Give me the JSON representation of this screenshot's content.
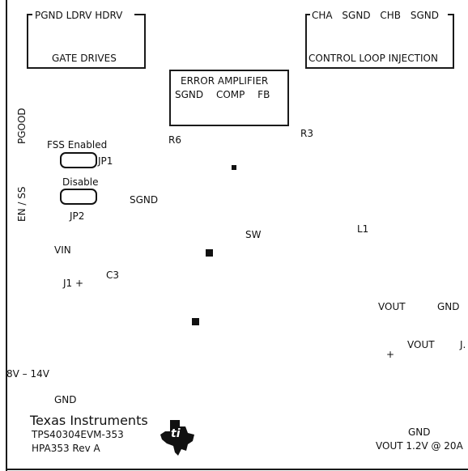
{
  "silkscreen": {
    "gate_drives": {
      "pins": "PGND LDRV HDRV",
      "title": "GATE DRIVES"
    },
    "control_loop": {
      "pins": "CHA SGND CHB SGND",
      "title": "CONTROL LOOP INJECTION"
    },
    "error_amp": {
      "title": "ERROR AMPLIFIER",
      "pins": "SGND COMP FB"
    },
    "labels": {
      "r6": "R6",
      "r3": "R3",
      "pgood": "PGOOD",
      "en_ss": "EN / SS",
      "fss_enabled": "FSS Enabled",
      "jp1": "JP1",
      "disable": "Disable",
      "jp2": "JP2",
      "sgnd": "SGND",
      "sw": "SW",
      "l1": "L1",
      "vin": "VIN",
      "c3": "C3",
      "j1": "J1 +",
      "vout_top": "VOUT",
      "gnd_right": "GND",
      "vout_mid": "VOUT",
      "j_cut": "J.",
      "plus_right": "+",
      "input_range": "8V – 14V",
      "gnd_left": "GND",
      "gnd_bottom_right": "GND",
      "vout_rating": "VOUT 1.2V @ 20A"
    },
    "branding": {
      "company": "Texas Instruments",
      "part_number": "TPS40304EVM-353",
      "revision": "HPA353 Rev A",
      "logo": "ti-logo-icon"
    }
  }
}
